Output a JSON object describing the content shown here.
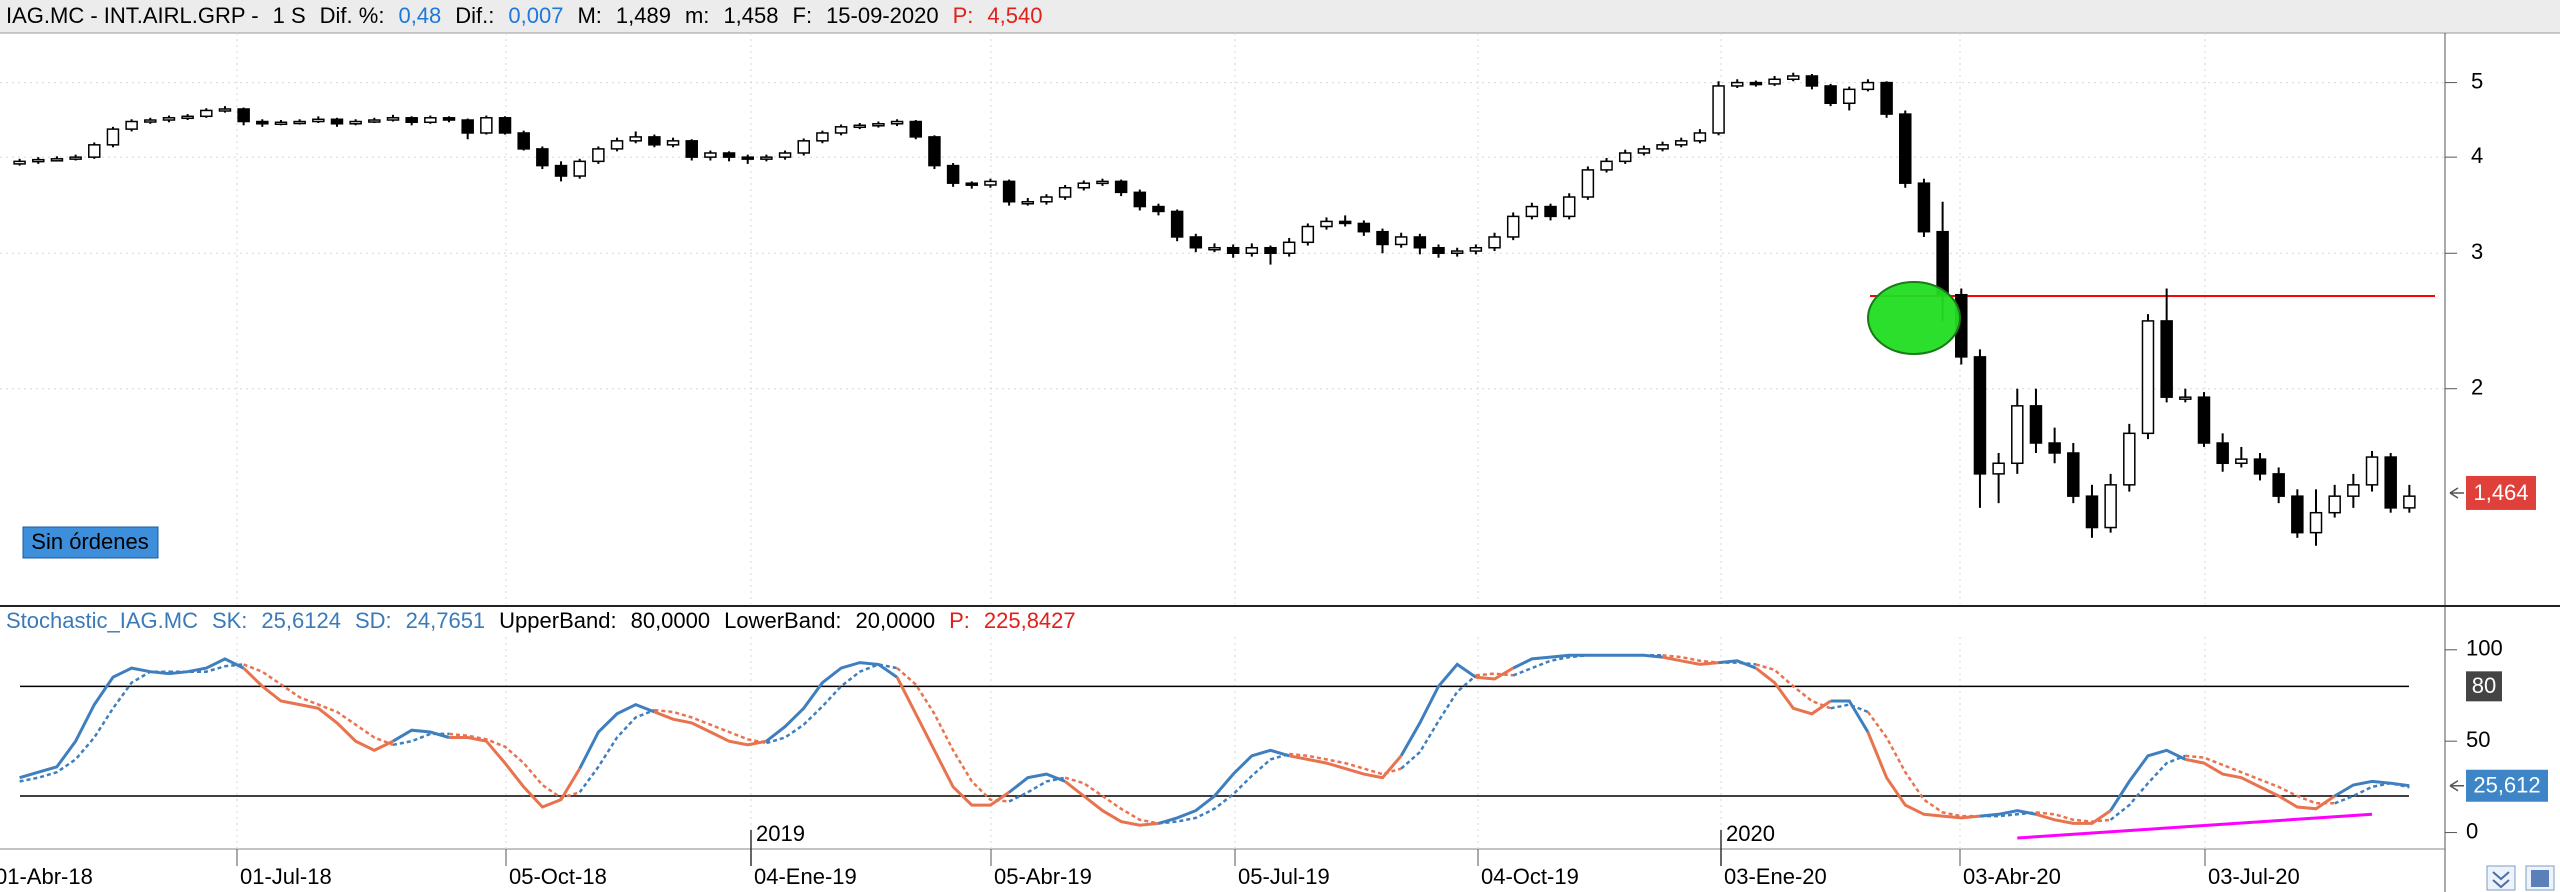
{
  "header": {
    "items": [
      {
        "text": "IAG.MC - INT.AIRL.GRP -",
        "color": "#000000"
      },
      {
        "text": "1 S",
        "color": "#000000"
      },
      {
        "text": "Dif. %:",
        "color": "#000000"
      },
      {
        "text": "0,48",
        "color": "#1e78d7"
      },
      {
        "text": "Dif.:",
        "color": "#000000"
      },
      {
        "text": "0,007",
        "color": "#1e78d7"
      },
      {
        "text": "M:",
        "color": "#000000"
      },
      {
        "text": "1,489",
        "color": "#000000"
      },
      {
        "text": "m:",
        "color": "#000000"
      },
      {
        "text": "1,458",
        "color": "#000000"
      },
      {
        "text": "F:",
        "color": "#000000"
      },
      {
        "text": "15-09-2020",
        "color": "#000000"
      },
      {
        "text": "P:",
        "color": "#e0201b"
      },
      {
        "text": "4,540",
        "color": "#e0201b"
      }
    ]
  },
  "stoch_header": {
    "items": [
      {
        "text": "Stochastic_IAG.MC",
        "color": "#3a7ab8"
      },
      {
        "text": "SK:",
        "color": "#3a7ab8"
      },
      {
        "text": "25,6124",
        "color": "#3a7ab8"
      },
      {
        "text": "SD:",
        "color": "#3a7ab8"
      },
      {
        "text": "24,7651",
        "color": "#3a7ab8"
      },
      {
        "text": "UpperBand:",
        "color": "#000000"
      },
      {
        "text": "80,0000",
        "color": "#000000"
      },
      {
        "text": "LowerBand:",
        "color": "#000000"
      },
      {
        "text": "20,0000",
        "color": "#000000"
      },
      {
        "text": "P:",
        "color": "#e0201b"
      },
      {
        "text": "225,8427",
        "color": "#e0201b"
      }
    ]
  },
  "xaxis": {
    "labels": [
      "01-Abr-18",
      "01-Jul-18",
      "05-Oct-18",
      "04-Ene-19",
      "05-Abr-19",
      "05-Jul-19",
      "04-Oct-19",
      "03-Ene-20",
      "03-Abr-20",
      "03-Jul-20"
    ],
    "years": [
      "2019",
      "2020"
    ]
  },
  "chart_data": [
    {
      "type": "candlestick",
      "log_scale": true,
      "ylim": [
        1.05,
        5.8
      ],
      "yticks": [
        2,
        3,
        4,
        5
      ],
      "grid": true,
      "up_color": "#ffffff",
      "down_color": "#000000",
      "hline": 2.64,
      "hline_color": "#ff0000",
      "last_price": {
        "value": 1.464,
        "label": "1,464"
      },
      "button": "Sin órdenes",
      "ohlc": [
        [
          3.92,
          3.98,
          3.9,
          3.95
        ],
        [
          3.95,
          4.0,
          3.92,
          3.97
        ],
        [
          3.97,
          4.01,
          3.95,
          3.98
        ],
        [
          3.98,
          4.03,
          3.96,
          4.0
        ],
        [
          4.0,
          4.18,
          3.98,
          4.15
        ],
        [
          4.15,
          4.38,
          4.12,
          4.35
        ],
        [
          4.35,
          4.48,
          4.32,
          4.45
        ],
        [
          4.45,
          4.5,
          4.42,
          4.47
        ],
        [
          4.47,
          4.53,
          4.44,
          4.5
        ],
        [
          4.5,
          4.55,
          4.47,
          4.52
        ],
        [
          4.52,
          4.63,
          4.5,
          4.6
        ],
        [
          4.6,
          4.66,
          4.57,
          4.62
        ],
        [
          4.62,
          4.64,
          4.4,
          4.45
        ],
        [
          4.45,
          4.48,
          4.38,
          4.42
        ],
        [
          4.42,
          4.47,
          4.4,
          4.44
        ],
        [
          4.44,
          4.48,
          4.41,
          4.45
        ],
        [
          4.45,
          4.52,
          4.43,
          4.48
        ],
        [
          4.48,
          4.5,
          4.38,
          4.42
        ],
        [
          4.42,
          4.48,
          4.4,
          4.45
        ],
        [
          4.45,
          4.5,
          4.43,
          4.47
        ],
        [
          4.47,
          4.54,
          4.45,
          4.5
        ],
        [
          4.5,
          4.52,
          4.4,
          4.44
        ],
        [
          4.44,
          4.53,
          4.42,
          4.5
        ],
        [
          4.5,
          4.52,
          4.44,
          4.47
        ],
        [
          4.47,
          4.49,
          4.22,
          4.3
        ],
        [
          4.3,
          4.53,
          4.28,
          4.5
        ],
        [
          4.5,
          4.52,
          4.28,
          4.3
        ],
        [
          4.3,
          4.33,
          4.08,
          4.1
        ],
        [
          4.1,
          4.13,
          3.86,
          3.9
        ],
        [
          3.9,
          3.95,
          3.72,
          3.78
        ],
        [
          3.78,
          3.98,
          3.75,
          3.95
        ],
        [
          3.95,
          4.13,
          3.92,
          4.1
        ],
        [
          4.1,
          4.24,
          4.07,
          4.2
        ],
        [
          4.2,
          4.32,
          4.17,
          4.25
        ],
        [
          4.25,
          4.28,
          4.12,
          4.15
        ],
        [
          4.15,
          4.24,
          4.12,
          4.2
        ],
        [
          4.2,
          4.22,
          3.96,
          4.0
        ],
        [
          4.0,
          4.08,
          3.96,
          4.05
        ],
        [
          4.05,
          4.07,
          3.95,
          4.0
        ],
        [
          4.0,
          4.03,
          3.92,
          3.98
        ],
        [
          3.98,
          4.03,
          3.95,
          4.0
        ],
        [
          4.0,
          4.08,
          3.97,
          4.05
        ],
        [
          4.05,
          4.23,
          4.02,
          4.2
        ],
        [
          4.2,
          4.33,
          4.17,
          4.3
        ],
        [
          4.3,
          4.41,
          4.27,
          4.38
        ],
        [
          4.38,
          4.43,
          4.35,
          4.4
        ],
        [
          4.4,
          4.45,
          4.37,
          4.42
        ],
        [
          4.42,
          4.48,
          4.39,
          4.45
        ],
        [
          4.45,
          4.47,
          4.22,
          4.25
        ],
        [
          4.25,
          4.27,
          3.86,
          3.9
        ],
        [
          3.9,
          3.93,
          3.66,
          3.7
        ],
        [
          3.7,
          3.72,
          3.64,
          3.68
        ],
        [
          3.68,
          3.75,
          3.65,
          3.72
        ],
        [
          3.72,
          3.74,
          3.46,
          3.5
        ],
        [
          3.5,
          3.54,
          3.46,
          3.5
        ],
        [
          3.5,
          3.58,
          3.47,
          3.55
        ],
        [
          3.55,
          3.68,
          3.52,
          3.65
        ],
        [
          3.65,
          3.73,
          3.62,
          3.7
        ],
        [
          3.7,
          3.75,
          3.67,
          3.72
        ],
        [
          3.72,
          3.74,
          3.56,
          3.6
        ],
        [
          3.6,
          3.63,
          3.41,
          3.45
        ],
        [
          3.45,
          3.48,
          3.36,
          3.4
        ],
        [
          3.4,
          3.42,
          3.11,
          3.15
        ],
        [
          3.15,
          3.18,
          3.01,
          3.05
        ],
        [
          3.05,
          3.09,
          3.01,
          3.05
        ],
        [
          3.05,
          3.08,
          2.96,
          3.0
        ],
        [
          3.0,
          3.09,
          2.97,
          3.05
        ],
        [
          3.05,
          3.07,
          2.9,
          3.0
        ],
        [
          3.0,
          3.14,
          2.97,
          3.1
        ],
        [
          3.1,
          3.28,
          3.07,
          3.25
        ],
        [
          3.25,
          3.34,
          3.22,
          3.3
        ],
        [
          3.3,
          3.36,
          3.25,
          3.28
        ],
        [
          3.28,
          3.31,
          3.16,
          3.2
        ],
        [
          3.2,
          3.23,
          3.0,
          3.08
        ],
        [
          3.08,
          3.19,
          3.05,
          3.15
        ],
        [
          3.15,
          3.18,
          2.99,
          3.05
        ],
        [
          3.05,
          3.08,
          2.96,
          3.0
        ],
        [
          3.0,
          3.05,
          2.97,
          3.02
        ],
        [
          3.02,
          3.08,
          2.99,
          3.05
        ],
        [
          3.05,
          3.19,
          3.02,
          3.15
        ],
        [
          3.15,
          3.39,
          3.12,
          3.35
        ],
        [
          3.35,
          3.49,
          3.32,
          3.45
        ],
        [
          3.45,
          3.48,
          3.31,
          3.35
        ],
        [
          3.35,
          3.59,
          3.32,
          3.55
        ],
        [
          3.55,
          3.89,
          3.52,
          3.85
        ],
        [
          3.85,
          3.99,
          3.82,
          3.95
        ],
        [
          3.95,
          4.09,
          3.92,
          4.05
        ],
        [
          4.05,
          4.14,
          4.02,
          4.1
        ],
        [
          4.1,
          4.19,
          4.07,
          4.15
        ],
        [
          4.15,
          4.24,
          4.12,
          4.2
        ],
        [
          4.2,
          4.35,
          4.17,
          4.3
        ],
        [
          4.3,
          5.02,
          4.27,
          4.95
        ],
        [
          4.95,
          5.05,
          4.92,
          5.0
        ],
        [
          5.0,
          5.03,
          4.94,
          4.98
        ],
        [
          4.98,
          5.1,
          4.95,
          5.05
        ],
        [
          5.05,
          5.15,
          5.02,
          5.1
        ],
        [
          5.1,
          5.13,
          4.9,
          4.95
        ],
        [
          4.95,
          4.98,
          4.66,
          4.7
        ],
        [
          4.7,
          4.94,
          4.6,
          4.9
        ],
        [
          4.9,
          5.05,
          4.87,
          5.0
        ],
        [
          5.0,
          5.02,
          4.5,
          4.55
        ],
        [
          4.55,
          4.6,
          3.65,
          3.7
        ],
        [
          3.7,
          3.75,
          3.15,
          3.2
        ],
        [
          3.2,
          3.5,
          2.45,
          2.65
        ],
        [
          2.65,
          2.7,
          2.15,
          2.2
        ],
        [
          2.2,
          2.25,
          1.4,
          1.55
        ],
        [
          1.55,
          1.65,
          1.42,
          1.6
        ],
        [
          1.6,
          2.0,
          1.55,
          1.9
        ],
        [
          1.9,
          2.0,
          1.65,
          1.7
        ],
        [
          1.7,
          1.78,
          1.6,
          1.65
        ],
        [
          1.65,
          1.7,
          1.42,
          1.45
        ],
        [
          1.45,
          1.5,
          1.28,
          1.32
        ],
        [
          1.32,
          1.55,
          1.3,
          1.5
        ],
        [
          1.5,
          1.8,
          1.47,
          1.75
        ],
        [
          1.75,
          2.5,
          1.72,
          2.45
        ],
        [
          2.45,
          2.7,
          1.92,
          1.95
        ],
        [
          1.95,
          2.0,
          1.92,
          1.95
        ],
        [
          1.95,
          1.98,
          1.68,
          1.7
        ],
        [
          1.7,
          1.75,
          1.56,
          1.6
        ],
        [
          1.6,
          1.68,
          1.58,
          1.62
        ],
        [
          1.62,
          1.65,
          1.52,
          1.55
        ],
        [
          1.55,
          1.58,
          1.42,
          1.45
        ],
        [
          1.45,
          1.48,
          1.28,
          1.3
        ],
        [
          1.3,
          1.48,
          1.25,
          1.38
        ],
        [
          1.38,
          1.5,
          1.36,
          1.45
        ],
        [
          1.45,
          1.55,
          1.4,
          1.5
        ],
        [
          1.5,
          1.66,
          1.47,
          1.63
        ],
        [
          1.63,
          1.65,
          1.38,
          1.4
        ],
        [
          1.4,
          1.5,
          1.38,
          1.45
        ]
      ]
    },
    {
      "type": "stochastic",
      "ylim": [
        -9,
        107
      ],
      "yticks": [
        0,
        50,
        100
      ],
      "bands": [
        80,
        20
      ],
      "band_color": "#000000",
      "last_value": {
        "value": 25.612,
        "label": "25,612"
      },
      "trendline": {
        "values": [
          -3,
          10
        ],
        "color": "#ff00ff"
      },
      "series": [
        {
          "color": "#3f7fbf",
          "down_color": "#e8734e",
          "values": [
            30,
            33,
            36,
            50,
            70,
            85,
            90,
            88,
            87,
            88,
            90,
            95,
            90,
            80,
            72,
            70,
            68,
            60,
            50,
            45,
            50,
            56,
            55,
            52,
            52,
            50,
            38,
            25,
            14,
            18,
            35,
            55,
            65,
            70,
            66,
            62,
            60,
            55,
            50,
            48,
            50,
            58,
            68,
            82,
            90,
            93,
            92,
            85,
            65,
            45,
            25,
            15,
            15,
            22,
            30,
            32,
            28,
            20,
            12,
            6,
            4,
            5,
            8,
            12,
            20,
            32,
            42,
            45,
            42,
            40,
            38,
            35,
            32,
            30,
            42,
            60,
            80,
            92,
            85,
            84,
            90,
            95,
            96,
            97,
            97,
            97,
            97,
            97,
            96,
            94,
            92,
            93,
            94,
            90,
            82,
            68,
            65,
            72,
            72,
            55,
            30,
            15,
            10,
            9,
            8,
            9,
            10,
            12,
            10,
            7,
            5,
            5,
            12,
            28,
            42,
            45,
            40,
            38,
            32,
            30,
            25,
            20,
            14,
            13,
            20,
            26,
            28,
            27,
            25.6124
          ]
        },
        {
          "color": "#3f7fbf",
          "down_color": "#e8734e",
          "dash": true,
          "values": [
            28,
            30,
            33,
            40,
            52,
            68,
            82,
            88,
            88,
            88,
            88,
            91,
            92,
            88,
            81,
            74,
            70,
            66,
            59,
            52,
            48,
            50,
            54,
            54,
            53,
            51,
            47,
            38,
            26,
            19,
            22,
            36,
            52,
            63,
            67,
            66,
            63,
            59,
            55,
            51,
            49,
            52,
            59,
            69,
            80,
            88,
            92,
            90,
            81,
            65,
            45,
            28,
            18,
            17,
            22,
            28,
            30,
            27,
            20,
            13,
            7,
            5,
            6,
            8,
            13,
            21,
            31,
            40,
            43,
            42,
            40,
            38,
            35,
            32,
            35,
            44,
            61,
            77,
            86,
            87,
            86,
            90,
            94,
            96,
            97,
            97,
            97,
            97,
            97,
            96,
            94,
            93,
            93,
            92,
            89,
            80,
            72,
            68,
            70,
            66,
            52,
            33,
            18,
            11,
            9,
            9,
            9,
            10,
            11,
            10,
            7,
            6,
            7,
            15,
            27,
            38,
            42,
            41,
            37,
            33,
            29,
            25,
            20,
            16,
            16,
            20,
            25,
            27,
            24.7651
          ]
        }
      ]
    }
  ]
}
